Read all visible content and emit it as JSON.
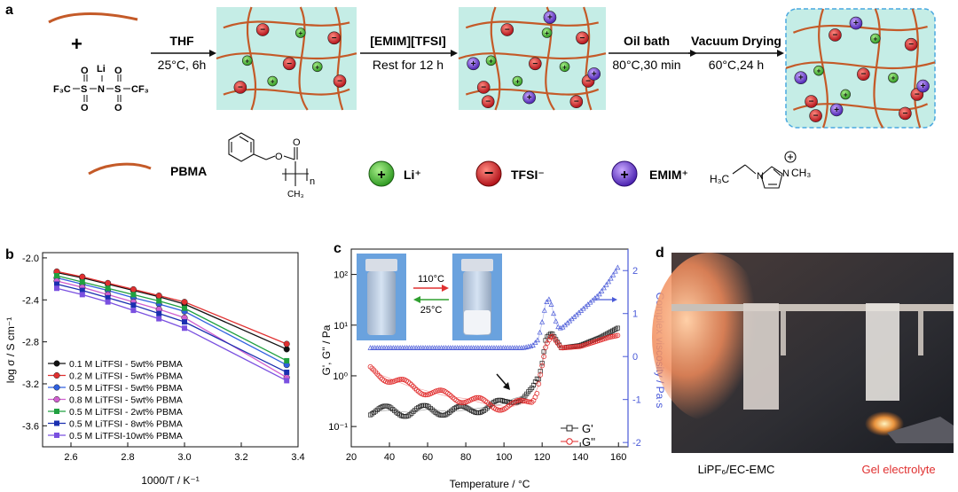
{
  "panel_a": {
    "letter": "a",
    "lithium_salt": {
      "formula_left": "F₃C",
      "formula_right": "CF₃",
      "atoms": {
        "S": "S",
        "N": "N",
        "O": "O",
        "Li": "Li"
      }
    },
    "plus_sign": "+",
    "steps": [
      {
        "top": "THF",
        "bottom": "25°C, 6h"
      },
      {
        "top": "[EMIM][TFSI]",
        "bottom": "Rest for 12 h"
      },
      {
        "top": "Oil bath",
        "bottom": "80°C,30 min"
      },
      {
        "top": "Vacuum Drying",
        "bottom": "60°C,24 h"
      }
    ],
    "legend": {
      "pbma": "PBMA",
      "n": "n",
      "ch3": "CH₃",
      "o": "O",
      "li": "Li⁺",
      "tfsi": "TFSI⁻",
      "emim": "EMIM⁺",
      "emim_left": "H₃C",
      "emim_right": "CH₃",
      "emim_n": "N"
    },
    "colors": {
      "chain": "#c45a28",
      "box": "#c5ede6",
      "li": "#5cc23c",
      "tfsi": "#d9262a",
      "emim": "#7a4fd6"
    }
  },
  "panel_b": {
    "letter": "b",
    "chart_data": {
      "type": "line",
      "xlabel": "1000/T / K⁻¹",
      "ylabel": "log σ / S cm⁻¹",
      "xlim": [
        2.5,
        3.4
      ],
      "ylim": [
        -3.8,
        -1.95
      ],
      "xticks": [
        "2.6",
        "2.8",
        "3.0",
        "3.2",
        "3.4"
      ],
      "yticks": [
        "-2.0",
        "-2.4",
        "-2.8",
        "-3.2",
        "-3.6"
      ],
      "x": [
        2.55,
        2.64,
        2.73,
        2.82,
        2.91,
        3.0,
        3.36
      ],
      "series": [
        {
          "name": "0.1 M LiTFSI - 5wt% PBMA",
          "color": "#111111",
          "values": [
            -2.14,
            -2.19,
            -2.25,
            -2.31,
            -2.37,
            -2.44,
            -2.87
          ]
        },
        {
          "name": "0.2 M LiTFSI - 5wt% PBMA",
          "color": "#e03030",
          "values": [
            -2.13,
            -2.18,
            -2.24,
            -2.3,
            -2.36,
            -2.42,
            -2.82
          ]
        },
        {
          "name": "0.5 M LiTFSI - 5wt% PBMA",
          "color": "#3060e0",
          "values": [
            -2.19,
            -2.25,
            -2.31,
            -2.38,
            -2.44,
            -2.51,
            -3.02
          ]
        },
        {
          "name": "0.8 M LiTFSI - 5wt% PBMA",
          "color": "#d060d0",
          "values": [
            -2.22,
            -2.28,
            -2.35,
            -2.42,
            -2.49,
            -2.57,
            -3.14
          ]
        },
        {
          "name": "0.5 M LiTFSI - 2wt% PBMA",
          "color": "#20a040",
          "values": [
            -2.17,
            -2.23,
            -2.29,
            -2.35,
            -2.41,
            -2.48,
            -2.98
          ]
        },
        {
          "name": "0.5 M LiTFSI - 8wt% PBMA",
          "color": "#1a2fb0",
          "values": [
            -2.25,
            -2.31,
            -2.38,
            -2.45,
            -2.53,
            -2.61,
            -3.09
          ]
        },
        {
          "name": "0.5 M LiTFSI-10wt% PBMA",
          "color": "#7a50e0",
          "values": [
            -2.29,
            -2.35,
            -2.42,
            -2.5,
            -2.58,
            -2.67,
            -3.17
          ]
        }
      ]
    }
  },
  "panel_c": {
    "letter": "c",
    "chart_data": {
      "type": "scatter",
      "xlabel": "Temperature / °C",
      "ylabel_left": "G', G'' / Pa",
      "ylabel_right": "Complex viscosity / Pa·s",
      "xlim": [
        20,
        165
      ],
      "xticks": [
        "20",
        "40",
        "60",
        "80",
        "100",
        "120",
        "140",
        "160"
      ],
      "yticks_left": [
        "10⁻¹",
        "10⁰",
        "10¹",
        "10²"
      ],
      "yticks_right": [
        "-2",
        "-1",
        "0",
        "1",
        "2"
      ],
      "ylim_left_log10": [
        -1.4,
        2.5
      ],
      "ylim_right": [
        -2.1,
        2.5
      ],
      "series": [
        {
          "name": "G'",
          "color": "#222222",
          "axis": "left_log10",
          "x": [
            30,
            40,
            50,
            60,
            70,
            80,
            90,
            100,
            105,
            110,
            115,
            118,
            120,
            122,
            125,
            130,
            140,
            150,
            155,
            160
          ],
          "values": [
            -0.7,
            -0.68,
            -0.72,
            -0.66,
            -0.7,
            -0.68,
            -0.62,
            -0.55,
            -0.45,
            -0.4,
            -0.3,
            -0.1,
            0.25,
            0.75,
            0.85,
            0.55,
            0.6,
            0.75,
            0.85,
            0.95
          ]
        },
        {
          "name": "G''",
          "color": "#e02828",
          "axis": "left_log10",
          "x": [
            30,
            40,
            50,
            60,
            70,
            80,
            90,
            100,
            105,
            110,
            115,
            118,
            120,
            122,
            125,
            130,
            140,
            150,
            155,
            160
          ],
          "values": [
            0.1,
            -0.05,
            -0.2,
            -0.3,
            -0.4,
            -0.45,
            -0.55,
            -0.6,
            -0.6,
            -0.55,
            -0.45,
            -0.2,
            0.2,
            0.6,
            0.8,
            0.55,
            0.58,
            0.7,
            0.76,
            0.8
          ]
        },
        {
          "name": "Complex viscosity",
          "color": "#4a5ad8",
          "axis": "right",
          "x": [
            30,
            50,
            70,
            90,
            110,
            115,
            118,
            120,
            122,
            124,
            126,
            128,
            130,
            135,
            140,
            145,
            150,
            155,
            158,
            160
          ],
          "values": [
            0.2,
            0.2,
            0.2,
            0.2,
            0.2,
            0.25,
            0.4,
            0.8,
            1.25,
            1.35,
            1.0,
            0.7,
            0.65,
            0.85,
            1.05,
            1.25,
            1.45,
            1.75,
            1.95,
            2.1
          ]
        }
      ],
      "inset": {
        "forward": "110°C",
        "backward": "25°C"
      }
    }
  },
  "panel_d": {
    "letter": "d",
    "caption_left": "LiPF₆/EC-EMC",
    "caption_right": "Gel electrolyte",
    "caption_right_color": "#e03030"
  }
}
